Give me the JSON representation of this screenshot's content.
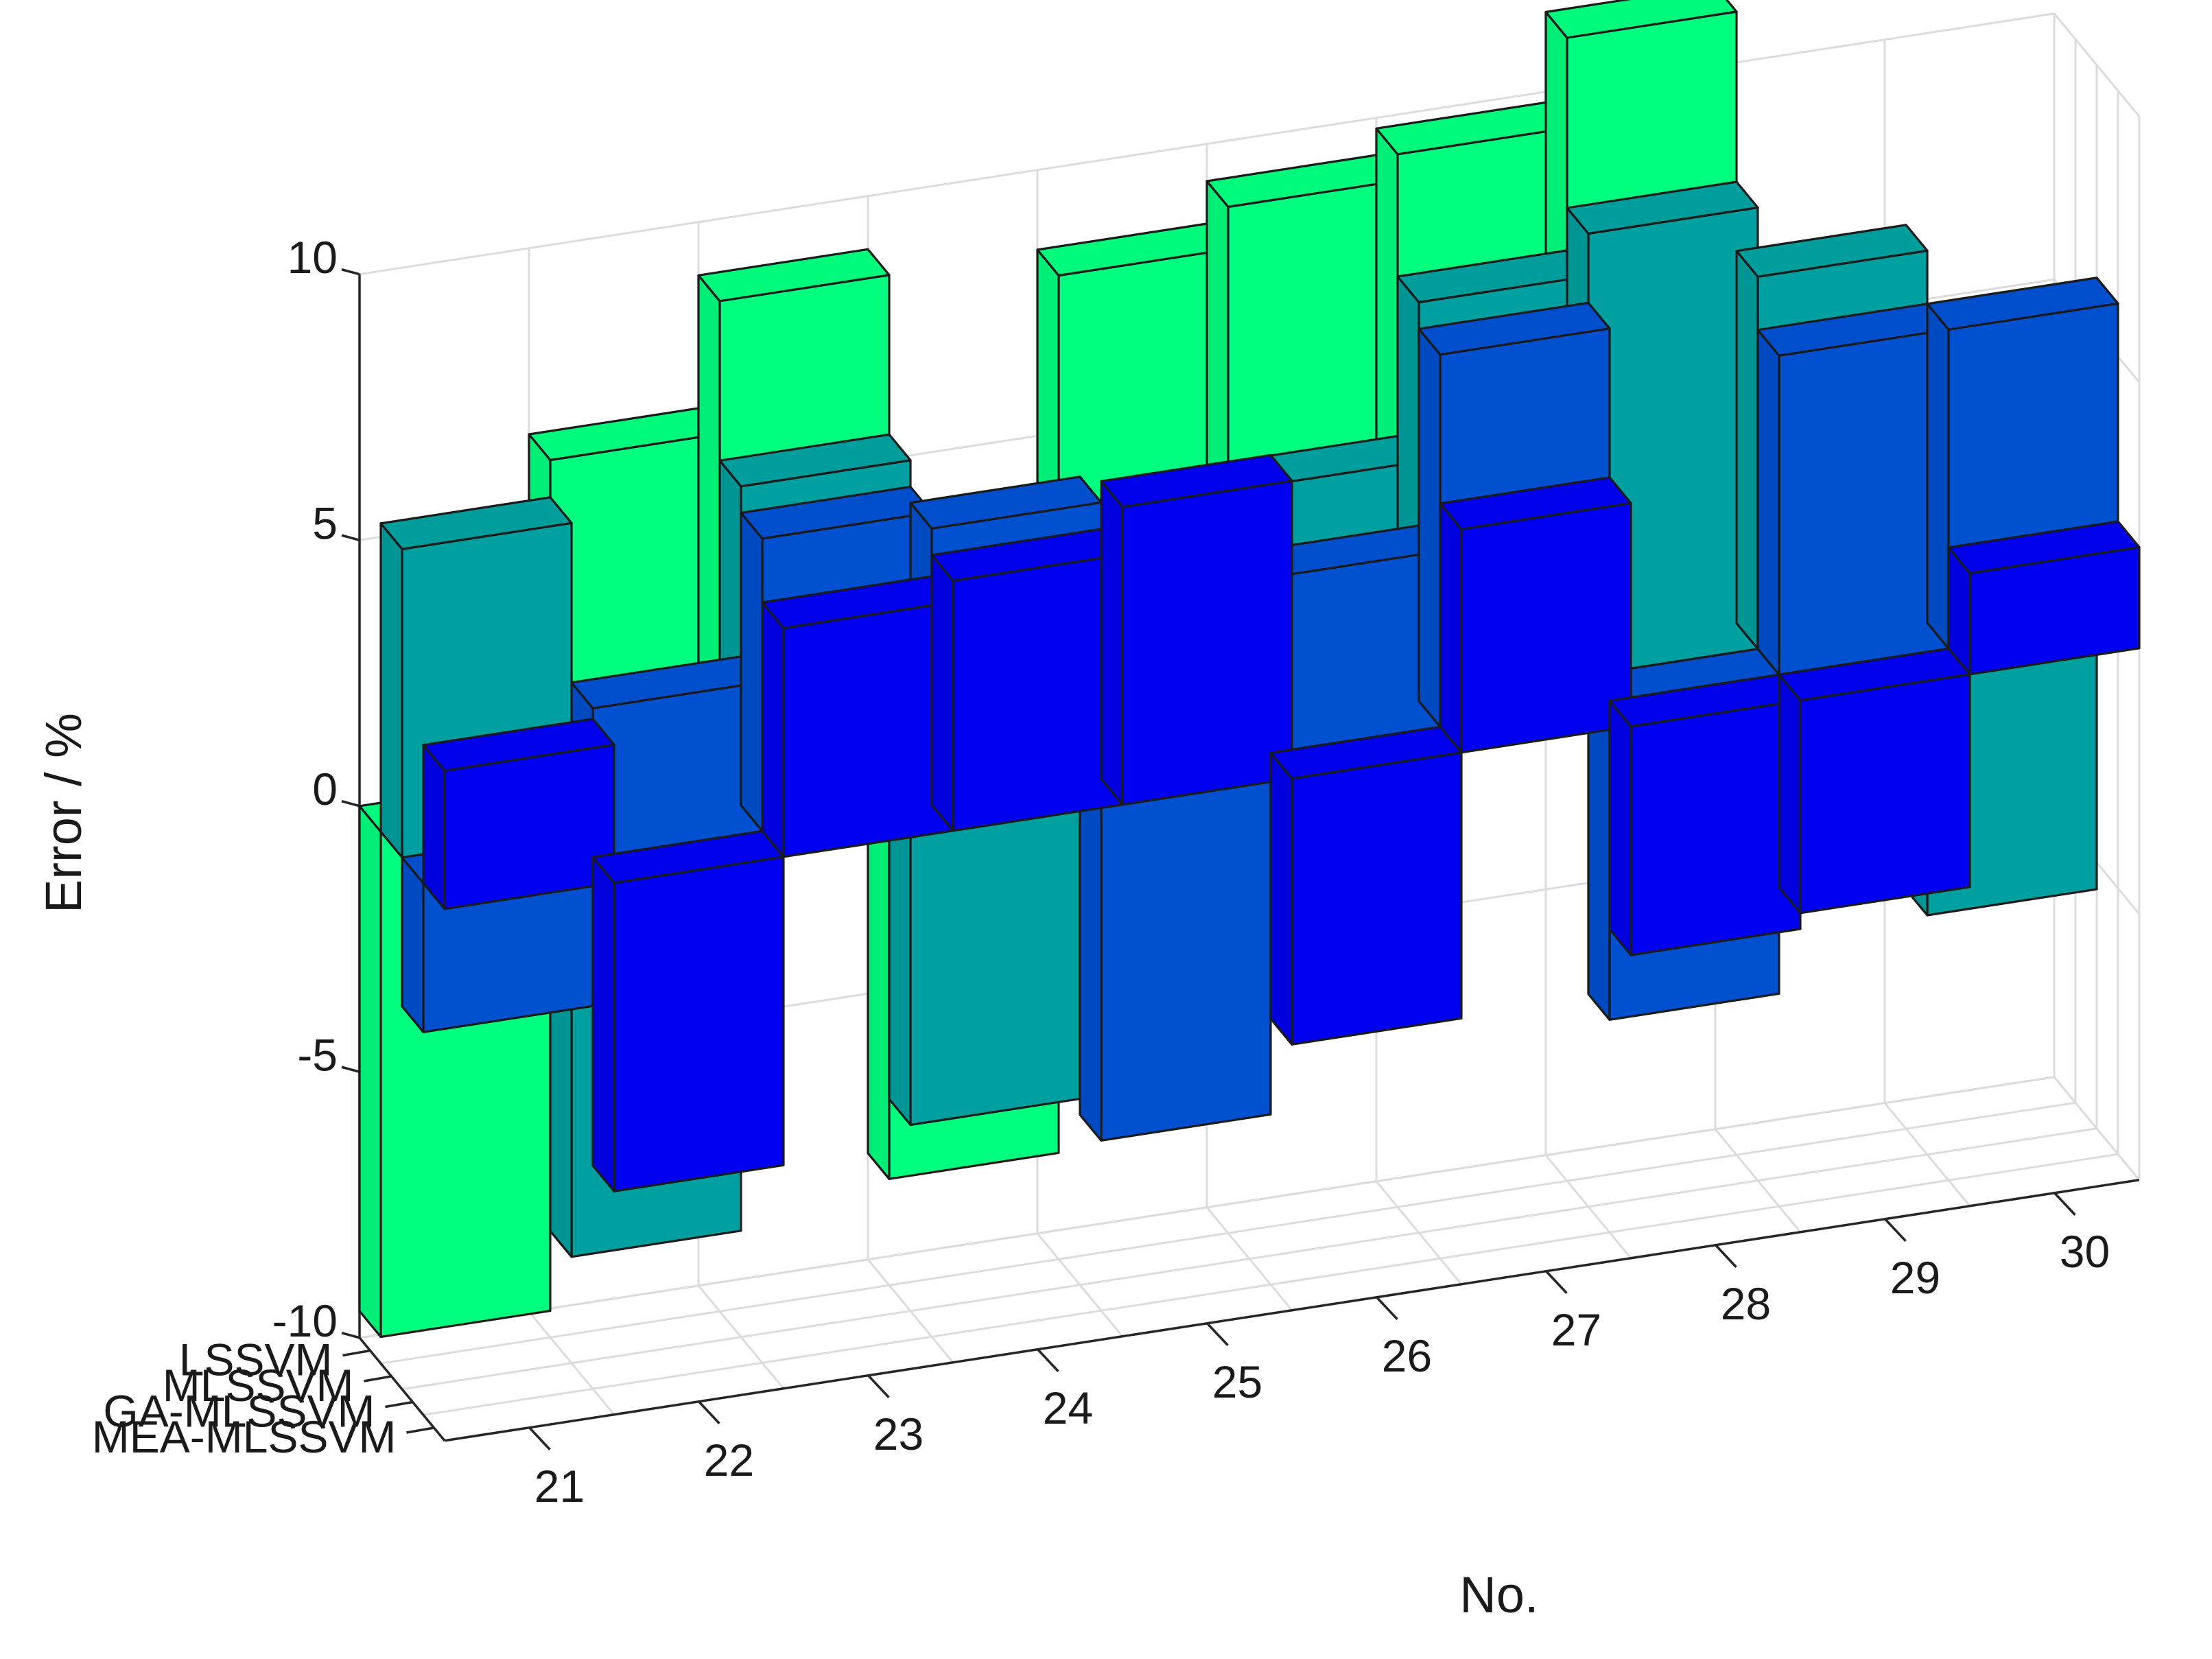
{
  "chart_data": {
    "type": "bar3d",
    "ylabel": "Error / %",
    "xlabel": "No.",
    "zlim": [
      -10,
      10
    ],
    "z_ticks": [
      10,
      5,
      0,
      -5,
      -10
    ],
    "categories": [
      "21",
      "22",
      "23",
      "24",
      "25",
      "26",
      "27",
      "28",
      "29",
      "30"
    ],
    "grid": true,
    "series": [
      {
        "name": "LSSVM",
        "color": "#00ff7f",
        "values": [
          -9.5,
          6.5,
          9.0,
          -8.0,
          8.5,
          9.3,
          9.8,
          11.5,
          3.0,
          2.5
        ]
      },
      {
        "name": "MLSSVM",
        "color": "#00a0a0",
        "values": [
          5.8,
          -8.0,
          6.0,
          -6.5,
          4.0,
          4.5,
          7.5,
          8.3,
          7.0,
          -5.5
        ]
      },
      {
        "name": "GA-MLSSVM",
        "color": "#0050d0",
        "values": [
          -2.8,
          2.8,
          5.5,
          5.2,
          -6.8,
          3.3,
          7.0,
          -6.0,
          6.0,
          6.0
        ]
      },
      {
        "name": "MEA-MLSSVM",
        "color": "#0000f0",
        "values": [
          2.6,
          -5.8,
          4.3,
          4.7,
          5.6,
          -5.0,
          4.2,
          -4.3,
          -4.0,
          1.9
        ]
      }
    ]
  }
}
